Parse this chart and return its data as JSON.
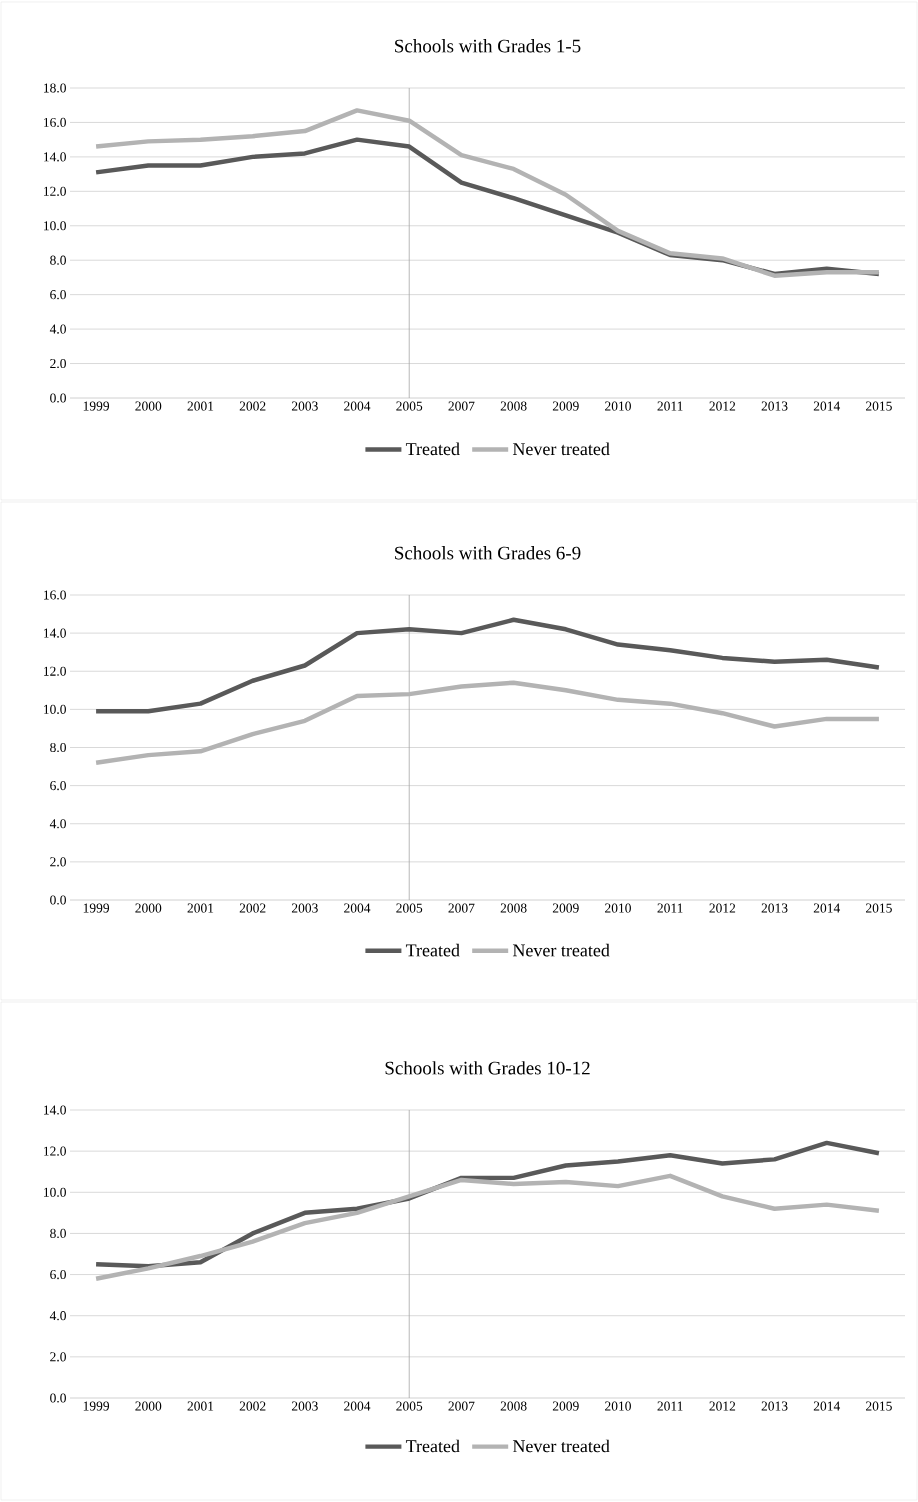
{
  "chart_data": [
    {
      "type": "line",
      "title": "Schools with Grades 1-5",
      "categories": [
        "1999",
        "2000",
        "2001",
        "2002",
        "2003",
        "2004",
        "2005",
        "2007",
        "2008",
        "2009",
        "2010",
        "2011",
        "2012",
        "2013",
        "2014",
        "2015"
      ],
      "series": [
        {
          "name": "Treated",
          "color": "#595959",
          "values": [
            13.1,
            13.5,
            13.5,
            14.0,
            14.2,
            15.0,
            14.6,
            12.5,
            11.6,
            10.6,
            9.6,
            8.3,
            8.0,
            7.2,
            7.5,
            7.2
          ]
        },
        {
          "name": "Never treated",
          "color": "#b3b3b3",
          "values": [
            14.6,
            14.9,
            15.0,
            15.2,
            15.5,
            16.7,
            16.1,
            14.1,
            13.3,
            11.8,
            9.7,
            8.4,
            8.1,
            7.1,
            7.3,
            7.3
          ]
        }
      ],
      "ylim": [
        0,
        18
      ],
      "yticks": [
        {
          "value": 0,
          "label": "0.0"
        },
        {
          "value": 2,
          "label": "2.0"
        },
        {
          "value": 4,
          "label": "4.0"
        },
        {
          "value": 6,
          "label": "6.0"
        },
        {
          "value": 8,
          "label": "8.0"
        },
        {
          "value": 10,
          "label": "10.0"
        },
        {
          "value": 12,
          "label": "12.0"
        },
        {
          "value": 14,
          "label": "14.0"
        },
        {
          "value": 16,
          "label": "16.0"
        },
        {
          "value": 18,
          "label": "18.0"
        }
      ],
      "grid": "y",
      "legend": "bottom",
      "ref_lines": [
        {
          "axis": "x",
          "value": "2005",
          "color": "#a6a6a6"
        }
      ]
    },
    {
      "type": "line",
      "title": "Schools with Grades 6-9",
      "categories": [
        "1999",
        "2000",
        "2001",
        "2002",
        "2003",
        "2004",
        "2005",
        "2007",
        "2008",
        "2009",
        "2010",
        "2011",
        "2012",
        "2013",
        "2014",
        "2015"
      ],
      "series": [
        {
          "name": "Treated",
          "color": "#595959",
          "values": [
            9.9,
            9.9,
            10.3,
            11.5,
            12.3,
            14.0,
            14.2,
            14.0,
            14.7,
            14.2,
            13.4,
            13.1,
            12.7,
            12.5,
            12.6,
            12.2
          ]
        },
        {
          "name": "Never treated",
          "color": "#b3b3b3",
          "values": [
            7.2,
            7.6,
            7.8,
            8.7,
            9.4,
            10.7,
            10.8,
            11.2,
            11.4,
            11.0,
            10.5,
            10.3,
            9.8,
            9.1,
            9.5,
            9.5
          ]
        }
      ],
      "ylim": [
        0,
        16
      ],
      "yticks": [
        {
          "value": 0,
          "label": "0.0"
        },
        {
          "value": 2,
          "label": "2.0"
        },
        {
          "value": 4,
          "label": "4.0"
        },
        {
          "value": 6,
          "label": "6.0"
        },
        {
          "value": 8,
          "label": "8.0"
        },
        {
          "value": 10,
          "label": "10.0"
        },
        {
          "value": 12,
          "label": "12.0"
        },
        {
          "value": 14,
          "label": "14.0"
        },
        {
          "value": 16,
          "label": "16.0"
        }
      ],
      "grid": "y",
      "legend": "bottom",
      "ref_lines": [
        {
          "axis": "x",
          "value": "2005",
          "color": "#a6a6a6"
        }
      ]
    },
    {
      "type": "line",
      "title": "Schools with Grades 10-12",
      "categories": [
        "1999",
        "2000",
        "2001",
        "2002",
        "2003",
        "2004",
        "2005",
        "2007",
        "2008",
        "2009",
        "2010",
        "2011",
        "2012",
        "2013",
        "2014",
        "2015"
      ],
      "series": [
        {
          "name": "Treated",
          "color": "#595959",
          "values": [
            6.5,
            6.4,
            6.6,
            8.0,
            9.0,
            9.2,
            9.7,
            10.7,
            10.7,
            11.3,
            11.5,
            11.8,
            11.4,
            11.6,
            12.4,
            11.9
          ]
        },
        {
          "name": "Never treated",
          "color": "#b3b3b3",
          "values": [
            5.8,
            6.3,
            6.9,
            7.6,
            8.5,
            9.0,
            9.8,
            10.6,
            10.4,
            10.5,
            10.3,
            10.8,
            9.8,
            9.2,
            9.4,
            9.1
          ]
        }
      ],
      "ylim": [
        0,
        14
      ],
      "yticks": [
        {
          "value": 0,
          "label": "0.0"
        },
        {
          "value": 2,
          "label": "2.0"
        },
        {
          "value": 4,
          "label": "4.0"
        },
        {
          "value": 6,
          "label": "6.0"
        },
        {
          "value": 8,
          "label": "8.0"
        },
        {
          "value": 10,
          "label": "10.0"
        },
        {
          "value": 12,
          "label": "12.0"
        },
        {
          "value": 14,
          "label": "14.0"
        }
      ],
      "grid": "y",
      "legend": "bottom",
      "ref_lines": [
        {
          "axis": "x",
          "value": "2005",
          "color": "#a6a6a6"
        }
      ]
    }
  ]
}
